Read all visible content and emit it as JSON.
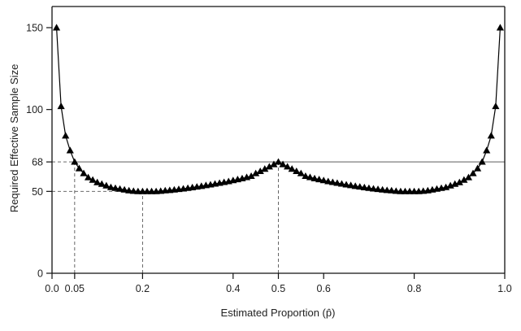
{
  "chart_data": {
    "type": "line",
    "title": "",
    "xlabel": "Estimated Proportion (p̂)",
    "ylabel": "Required Effective Sample Size",
    "xlim": [
      0.0,
      1.0
    ],
    "ylim": [
      0,
      150
    ],
    "grid": false,
    "legend": null,
    "marker": "triangle",
    "x_ticks": [
      {
        "value": 0.0,
        "label": "0.0"
      },
      {
        "value": 0.05,
        "label": "0.05"
      },
      {
        "value": 0.2,
        "label": "0.2"
      },
      {
        "value": 0.4,
        "label": "0.4"
      },
      {
        "value": 0.5,
        "label": "0.5"
      },
      {
        "value": 0.6,
        "label": "0.6"
      },
      {
        "value": 0.8,
        "label": "0.8"
      },
      {
        "value": 1.0,
        "label": "1.0"
      }
    ],
    "y_ticks": [
      {
        "value": 0,
        "label": "0"
      },
      {
        "value": 50,
        "label": "50"
      },
      {
        "value": 68,
        "label": "68"
      },
      {
        "value": 100,
        "label": "100"
      },
      {
        "value": 150,
        "label": "150"
      }
    ],
    "reference_lines": [
      {
        "type": "horizontal",
        "y": 68,
        "style": "solid",
        "from_x": 0.05,
        "to_x": 1.0
      },
      {
        "type": "horizontal",
        "y": 68,
        "style": "dashed",
        "from_x": 0.0,
        "to_x": 0.05
      },
      {
        "type": "horizontal",
        "y": 50,
        "style": "dashed",
        "from_x": 0.0,
        "to_x": 0.2
      },
      {
        "type": "vertical",
        "x": 0.05,
        "style": "dashed",
        "from_y": 0,
        "to_y": 68
      },
      {
        "type": "vertical",
        "x": 0.2,
        "style": "dashed",
        "from_y": 0,
        "to_y": 50
      },
      {
        "type": "vertical",
        "x": 0.5,
        "style": "dashed",
        "from_y": 0,
        "to_y": 68
      }
    ],
    "series": [
      {
        "name": "Required Effective Sample Size",
        "x": [
          0.01,
          0.02,
          0.03,
          0.04,
          0.05,
          0.06,
          0.07,
          0.08,
          0.09,
          0.1,
          0.11,
          0.12,
          0.13,
          0.14,
          0.15,
          0.16,
          0.17,
          0.18,
          0.19,
          0.2,
          0.21,
          0.22,
          0.23,
          0.24,
          0.25,
          0.26,
          0.27,
          0.28,
          0.29,
          0.3,
          0.31,
          0.32,
          0.33,
          0.34,
          0.35,
          0.36,
          0.37,
          0.38,
          0.39,
          0.4,
          0.41,
          0.42,
          0.43,
          0.44,
          0.45,
          0.46,
          0.47,
          0.48,
          0.49,
          0.5,
          0.51,
          0.52,
          0.53,
          0.54,
          0.55,
          0.56,
          0.57,
          0.58,
          0.59,
          0.6,
          0.61,
          0.62,
          0.63,
          0.64,
          0.65,
          0.66,
          0.67,
          0.68,
          0.69,
          0.7,
          0.71,
          0.72,
          0.73,
          0.74,
          0.75,
          0.76,
          0.77,
          0.78,
          0.79,
          0.8,
          0.81,
          0.82,
          0.83,
          0.84,
          0.85,
          0.86,
          0.87,
          0.88,
          0.89,
          0.9,
          0.91,
          0.92,
          0.93,
          0.94,
          0.95,
          0.96,
          0.97,
          0.98,
          0.99
        ],
        "values": [
          150,
          102,
          84,
          75,
          68,
          64,
          61,
          58.5,
          57,
          55.5,
          54.5,
          53.5,
          52.5,
          52,
          51.5,
          51,
          50.5,
          50.2,
          50,
          50,
          50,
          50,
          50,
          50.2,
          50.5,
          50.7,
          51,
          51.3,
          51.6,
          52,
          52.4,
          52.8,
          53.2,
          53.7,
          54.1,
          54.6,
          55.1,
          55.6,
          56.1,
          56.7,
          57.3,
          57.9,
          58.6,
          59.3,
          61,
          62.3,
          63.7,
          65.1,
          66.5,
          68,
          66.5,
          65.1,
          63.7,
          62.3,
          61,
          59.3,
          58.6,
          57.9,
          57.3,
          56.7,
          56.1,
          55.6,
          55.1,
          54.6,
          54.1,
          53.7,
          53.2,
          52.8,
          52.4,
          52,
          51.6,
          51.3,
          51,
          50.7,
          50.5,
          50.2,
          50,
          50,
          50,
          50,
          50,
          50.2,
          50.5,
          51,
          51.5,
          52,
          52.5,
          53.5,
          54.5,
          55.5,
          57,
          58.5,
          61,
          64,
          68,
          75,
          84,
          102,
          150
        ]
      }
    ]
  }
}
